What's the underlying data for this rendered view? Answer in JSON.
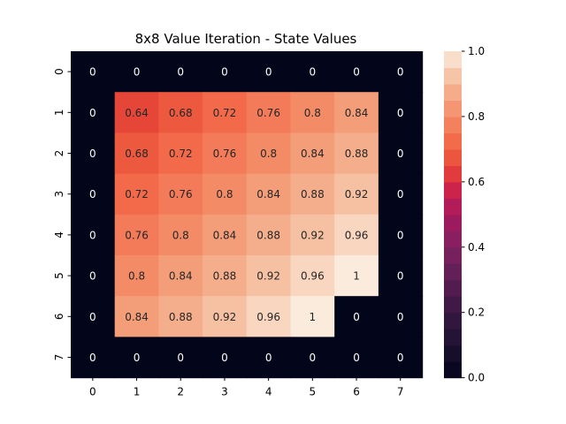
{
  "chart_data": {
    "type": "heatmap",
    "title": "8x8 Value Iteration - State Values",
    "xlabel": "",
    "ylabel": "",
    "x_tick_labels": [
      "0",
      "1",
      "2",
      "3",
      "4",
      "5",
      "6",
      "7"
    ],
    "y_tick_labels": [
      "0",
      "1",
      "2",
      "3",
      "4",
      "5",
      "6",
      "7"
    ],
    "values": [
      [
        0,
        0,
        0,
        0,
        0,
        0,
        0,
        0
      ],
      [
        0,
        0.64,
        0.68,
        0.72,
        0.76,
        0.8,
        0.84,
        0
      ],
      [
        0,
        0.68,
        0.72,
        0.76,
        0.8,
        0.84,
        0.88,
        0
      ],
      [
        0,
        0.72,
        0.76,
        0.8,
        0.84,
        0.88,
        0.92,
        0
      ],
      [
        0,
        0.76,
        0.8,
        0.84,
        0.88,
        0.92,
        0.96,
        0
      ],
      [
        0,
        0.8,
        0.84,
        0.88,
        0.92,
        0.96,
        1,
        0
      ],
      [
        0,
        0.84,
        0.88,
        0.92,
        0.96,
        1,
        0,
        0
      ],
      [
        0,
        0,
        0,
        0,
        0,
        0,
        0,
        0
      ]
    ],
    "annotations": true,
    "colormap": "rocket",
    "vmin": 0,
    "vmax": 1,
    "colorbar_ticks": [
      "0.0",
      "0.2",
      "0.4",
      "0.6",
      "0.8",
      "1.0"
    ],
    "grid": false
  }
}
